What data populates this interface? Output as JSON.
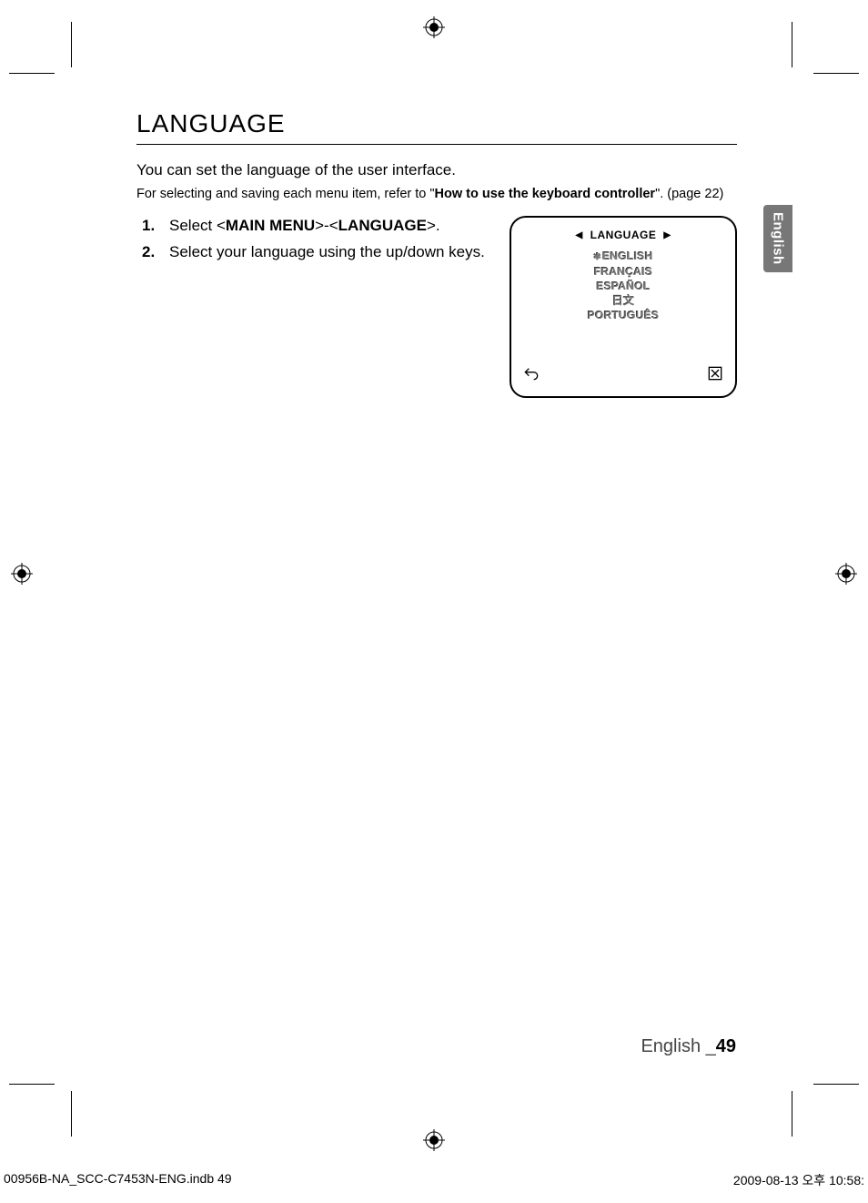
{
  "title": "LANGUAGE",
  "intro1": "You can set the language of the user interface.",
  "intro2_prefix": "For selecting and saving each menu item, refer to \"",
  "intro2_bold": "How to use the keyboard controller",
  "intro2_suffix": "\". (page 22)",
  "steps": [
    {
      "num": "1",
      "pre": "Select <",
      "b1": "MAIN MENU",
      "mid": ">-<",
      "b2": "LANGUAGE",
      "post": ">."
    },
    {
      "num": "2",
      "text": "Select your language using the up/down keys."
    }
  ],
  "menu": {
    "header": "LANGUAGE",
    "items": [
      "ENGLISH",
      "FRANÇAIS",
      "ESPAÑOL",
      "日文",
      "PORTUGUÊS"
    ],
    "selected_index": 0
  },
  "side_tab": "English",
  "footer_lang": "English _",
  "footer_page": "49",
  "imprint_left": "00956B-NA_SCC-C7453N-ENG.indb   49",
  "imprint_right": "2009-08-13   오후 10:58:"
}
